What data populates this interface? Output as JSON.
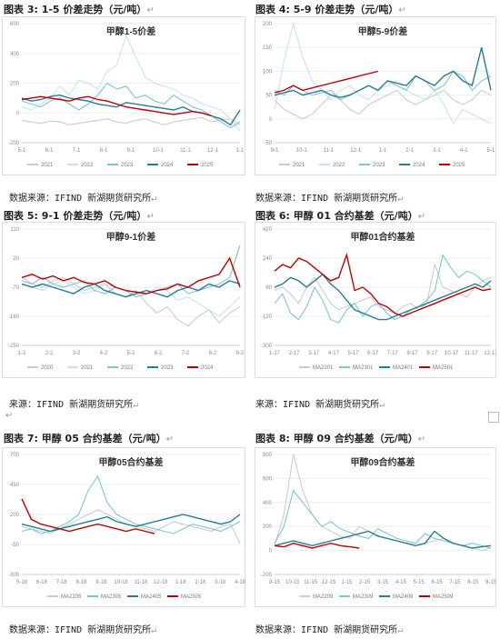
{
  "figures": [
    {
      "heading": "图表 3:  1-5 价差走势（元/吨）",
      "chart_title": "甲醇1-5价差",
      "source": "数据来源：IFIND 新湖期货研究所",
      "chart_data": {
        "type": "line",
        "title": "甲醇1-5价差",
        "x_ticks": [
          "5-1",
          "6-1",
          "7-1",
          "8-1",
          "9-1",
          "10-1",
          "11-1",
          "12-1",
          "1-1"
        ],
        "y_ticks": [
          "600",
          "400",
          "200",
          "0",
          "-200"
        ],
        "ylim": [
          -200,
          600
        ],
        "series": [
          {
            "name": "2021",
            "color": "#cccccc",
            "values": [
              -50,
              -60,
              -70,
              -55,
              -60,
              -80,
              -70,
              -60,
              -50,
              -40,
              -60,
              -70,
              -50,
              -40,
              -60,
              -80,
              -60,
              -50,
              -40,
              -30,
              -60,
              -50,
              -40,
              -80
            ]
          },
          {
            "name": "2022",
            "color": "#c5e4ec",
            "values": [
              40,
              20,
              60,
              100,
              180,
              120,
              220,
              200,
              160,
              280,
              320,
              520,
              380,
              240,
              200,
              180,
              160,
              120,
              100,
              60,
              40,
              20,
              -40,
              -120
            ]
          },
          {
            "name": "2023",
            "color": "#7fc4d4",
            "values": [
              80,
              60,
              40,
              80,
              100,
              60,
              20,
              60,
              120,
              200,
              160,
              180,
              100,
              120,
              80,
              60,
              120,
              80,
              40,
              20,
              -20,
              -60,
              -100,
              -60
            ]
          },
          {
            "name": "2024",
            "color": "#2a7c93",
            "values": [
              100,
              80,
              90,
              110,
              120,
              100,
              90,
              80,
              60,
              50,
              40,
              70,
              60,
              50,
              40,
              30,
              20,
              40,
              10,
              0,
              -20,
              -40,
              -80,
              20
            ]
          },
          {
            "name": "2025",
            "color": "#c00000",
            "values": [
              90,
              100,
              110,
              100,
              90,
              80,
              100,
              110,
              90,
              80,
              60,
              40,
              30,
              20,
              10,
              0,
              -10,
              0,
              10,
              0,
              -20
            ]
          }
        ]
      }
    },
    {
      "heading": "图表 4:  5-9 价差走势（元/吨）",
      "chart_title": "甲醇5-9价差",
      "source": "数据来源：IFIND 新湖期货研究所",
      "chart_data": {
        "type": "line",
        "title": "甲醇5-9价差",
        "x_ticks": [
          "9-1",
          "10-1",
          "11-1",
          "12-1",
          "1-1",
          "2-1",
          "3-1",
          "4-1",
          "5-1"
        ],
        "y_ticks": [
          "200",
          "150",
          "100",
          "50",
          "0",
          "-50"
        ],
        "ylim": [
          -50,
          200
        ],
        "series": [
          {
            "name": "2021",
            "color": "#cccccc",
            "values": [
              40,
              20,
              10,
              0,
              10,
              30,
              50,
              40,
              20,
              10,
              30,
              40,
              50,
              60,
              40,
              30,
              40,
              50,
              60,
              40,
              30,
              40,
              60,
              50
            ]
          },
          {
            "name": "2022",
            "color": "#c5e4ec",
            "values": [
              20,
              120,
              200,
              130,
              80,
              60,
              40,
              60,
              70,
              50,
              40,
              60,
              70,
              80,
              60,
              50,
              40,
              60,
              30,
              -10,
              20,
              10,
              0,
              -10
            ]
          },
          {
            "name": "2023",
            "color": "#7fc4d4",
            "values": [
              60,
              50,
              70,
              60,
              50,
              55,
              60,
              40,
              50,
              60,
              70,
              60,
              80,
              70,
              60,
              90,
              80,
              60,
              70,
              100,
              90,
              60,
              80,
              90
            ]
          },
          {
            "name": "2024",
            "color": "#2a7c93",
            "values": [
              50,
              55,
              60,
              50,
              55,
              60,
              50,
              45,
              50,
              60,
              70,
              60,
              80,
              75,
              70,
              90,
              80,
              70,
              90,
              100,
              80,
              70,
              150,
              60
            ]
          },
          {
            "name": "2025",
            "color": "#c00000",
            "values": [
              55,
              60,
              70,
              60,
              65,
              70,
              75,
              80,
              85,
              90,
              95,
              100
            ]
          }
        ]
      }
    },
    {
      "heading": "图表 5:  9-1 价差走势（元/吨）",
      "chart_title": "甲醇9-1价差",
      "source": "来源：IFIND 新湖期货研究所",
      "chart_data": {
        "type": "line",
        "title": "甲醇9-1价差",
        "x_ticks": [
          "1-2",
          "2-2",
          "3-2",
          "4-2",
          "5-2",
          "6-2",
          "7-2",
          "8-2",
          "9-2"
        ],
        "y_ticks": [
          "110",
          "20",
          "-70",
          "-160",
          "-250"
        ],
        "ylim": [
          -250,
          110
        ],
        "series": [
          {
            "name": "2020",
            "color": "#cccccc",
            "values": [
              -40,
              -60,
              -70,
              -50,
              -40,
              -60,
              -80,
              -70,
              -60,
              -90,
              -100,
              -80,
              -120,
              -150,
              -130,
              -170,
              -190,
              -160,
              -140,
              -180,
              -150,
              -130
            ]
          },
          {
            "name": "2021",
            "color": "#c5e4ec",
            "values": [
              -60,
              -70,
              -80,
              -60,
              -50,
              -70,
              -90,
              -80,
              -60,
              -70,
              -80,
              -100,
              -90,
              -70,
              -80,
              -110,
              -100,
              -120,
              -140,
              -160,
              -130,
              -100
            ]
          },
          {
            "name": "2022",
            "color": "#7fc4d4",
            "values": [
              -50,
              -60,
              -40,
              -60,
              -70,
              -60,
              -50,
              -80,
              -90,
              -70,
              -80,
              -100,
              -90,
              -80,
              -70,
              -60,
              -90,
              -80,
              -70,
              -60,
              -40,
              60
            ]
          },
          {
            "name": "2023",
            "color": "#2a7c93",
            "values": [
              -60,
              -70,
              -60,
              -70,
              -80,
              -90,
              -70,
              -60,
              -80,
              -90,
              -100,
              -90,
              -80,
              -90,
              -100,
              -80,
              -70,
              -80,
              -60,
              -70,
              -50,
              -60
            ]
          },
          {
            "name": "2024",
            "color": "#c00000",
            "values": [
              -40,
              -30,
              -45,
              -35,
              -50,
              -40,
              -55,
              -60,
              -50,
              -70,
              -80,
              -85,
              -90,
              -80,
              -75,
              -60,
              -70,
              -50,
              -40,
              -30,
              20,
              -70
            ]
          }
        ]
      }
    },
    {
      "heading": "图表 6:  甲醇 01 合约基差（元/吨）",
      "chart_title": "甲醇01合约基差",
      "source": "来源：IFIND 新湖期货研究所",
      "chart_data": {
        "type": "line",
        "title": "甲醇01合约基差",
        "x_ticks": [
          "1-17",
          "2-17",
          "3-17",
          "4-17",
          "5-17",
          "6-17",
          "7-17",
          "8-17",
          "9-17",
          "10-17",
          "11-17",
          "12-17"
        ],
        "y_ticks": [
          "420",
          "240",
          "60",
          "-120",
          "-300"
        ],
        "ylim": [
          -300,
          420
        ],
        "series": [
          {
            "name": "MA2201",
            "color": "#cccccc",
            "values": [
              40,
              60,
              20,
              -40,
              60,
              120,
              40,
              -40,
              -80,
              -60,
              -40,
              -20,
              0,
              -60,
              -80,
              -100,
              -60,
              -40,
              -80,
              -40,
              200,
              60,
              40,
              20,
              0,
              60,
              100,
              120
            ]
          },
          {
            "name": "MA2301",
            "color": "#7fc4d4",
            "values": [
              -40,
              20,
              -100,
              -140,
              -60,
              60,
              -20,
              -140,
              -160,
              -80,
              -40,
              -120,
              -60,
              -40,
              -100,
              -140,
              -120,
              -80,
              -60,
              -20,
              40,
              260,
              180,
              120,
              160,
              140,
              100,
              60
            ]
          },
          {
            "name": "MA2401",
            "color": "#2a7c93",
            "values": [
              60,
              80,
              120,
              100,
              60,
              100,
              140,
              80,
              40,
              -20,
              -80,
              -100,
              -120,
              -140,
              -140,
              -120,
              -100,
              -80,
              -60,
              -40,
              -20,
              0,
              20,
              40,
              60,
              80,
              60,
              100
            ]
          },
          {
            "name": "MA2501",
            "color": "#c00000",
            "values": [
              160,
              200,
              180,
              240,
              220,
              180,
              140,
              100,
              120,
              260,
              40,
              60,
              20,
              -40,
              -60,
              -100,
              -120,
              -100,
              -80,
              -60,
              -40,
              -20,
              0,
              20,
              40,
              60,
              40,
              50
            ]
          }
        ]
      }
    },
    {
      "heading": "图表 7:  甲醇 05 合约基差（元/吨）",
      "chart_title": "甲醇05合约基差",
      "source": "数据来源：IFIND 新湖期货研究所",
      "chart_data": {
        "type": "line",
        "title": "甲醇05合约基差",
        "x_ticks": [
          "5-18",
          "6-18",
          "7-18",
          "8-18",
          "9-18",
          "10-18",
          "11-18",
          "12-18",
          "1-18",
          "2-18",
          "3-18",
          "4-18"
        ],
        "y_ticks": [
          "700",
          "450",
          "200",
          "-50",
          "-300"
        ],
        "ylim": [
          -300,
          700
        ],
        "series": [
          {
            "name": "MA2205",
            "color": "#cccccc",
            "values": [
              100,
              80,
              60,
              40,
              80,
              120,
              160,
              200,
              240,
              200,
              160,
              120,
              100,
              80,
              60,
              100,
              140,
              120,
              100,
              80,
              60,
              100,
              120,
              -40
            ]
          },
          {
            "name": "MA2305",
            "color": "#7fc4d4",
            "values": [
              60,
              80,
              40,
              60,
              100,
              140,
              200,
              400,
              520,
              300,
              200,
              160,
              120,
              100,
              80,
              60,
              40,
              80,
              120,
              100,
              80,
              60,
              100,
              140
            ]
          },
          {
            "name": "MA2405",
            "color": "#2a7c93",
            "values": [
              120,
              100,
              80,
              60,
              80,
              100,
              120,
              140,
              160,
              180,
              140,
              120,
              100,
              120,
              140,
              160,
              180,
              200,
              180,
              160,
              140,
              120,
              140,
              200
            ]
          },
          {
            "name": "MA2505",
            "color": "#c00000",
            "values": [
              330,
              160,
              120,
              100,
              80,
              60,
              80,
              100,
              120,
              100,
              80,
              60,
              80,
              60,
              40
            ]
          }
        ]
      }
    },
    {
      "heading": "图表 8:  甲醇 09 合约基差（元/吨）",
      "chart_title": "甲醇09合约基差",
      "source": "数据来源：IFIND 新湖期货研究所",
      "chart_data": {
        "type": "line",
        "title": "甲醇09合约基差",
        "x_ticks": [
          "9-15",
          "10-15",
          "11-15",
          "12-15",
          "1-15",
          "2-15",
          "3-15",
          "4-15",
          "5-15",
          "6-15",
          "7-15",
          "8-15",
          "9-15"
        ],
        "y_ticks": [
          "800",
          "600",
          "400",
          "200",
          "0",
          "-200"
        ],
        "ylim": [
          -200,
          800
        ],
        "series": [
          {
            "name": "MA2209",
            "color": "#cccccc",
            "values": [
              40,
              300,
              800,
              500,
              300,
              200,
              160,
              120,
              100,
              200,
              160,
              120,
              100,
              80,
              60,
              40,
              60,
              80,
              100,
              60,
              40,
              20,
              0,
              20
            ]
          },
          {
            "name": "MA2309",
            "color": "#7fc4d4",
            "values": [
              60,
              200,
              500,
              400,
              300,
              200,
              240,
              180,
              150,
              120,
              100,
              180,
              140,
              100,
              80,
              60,
              140,
              100,
              80,
              60,
              40,
              60,
              40,
              20
            ]
          },
          {
            "name": "MA2409",
            "color": "#2a7c93",
            "values": [
              40,
              60,
              80,
              60,
              40,
              60,
              80,
              100,
              120,
              140,
              160,
              120,
              100,
              80,
              60,
              40,
              60,
              160,
              100,
              60,
              40,
              20,
              30,
              40
            ]
          },
          {
            "name": "MA2509",
            "color": "#c00000",
            "values": [
              40,
              30,
              60,
              40,
              20,
              40,
              60,
              40,
              30,
              20
            ]
          }
        ]
      }
    }
  ]
}
